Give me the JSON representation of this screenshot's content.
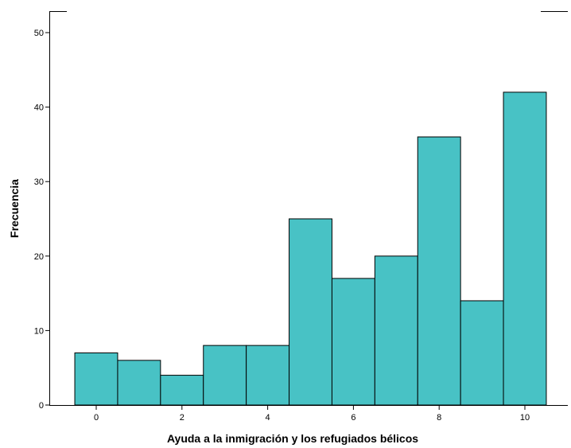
{
  "chart_data": {
    "type": "bar",
    "title": "",
    "xlabel": "Ayuda a la inmigración y los refugiados bélicos",
    "ylabel": "Frecuencia",
    "x": [
      0,
      1,
      2,
      3,
      4,
      5,
      6,
      7,
      8,
      9,
      10
    ],
    "values": [
      7,
      6,
      4,
      8,
      8,
      25,
      17,
      20,
      36,
      14,
      42
    ],
    "xlim": [
      -1,
      11
    ],
    "ylim": [
      0,
      52
    ],
    "x_ticks": [
      0,
      2,
      4,
      6,
      8,
      10
    ],
    "y_ticks": [
      0,
      10,
      20,
      30,
      40,
      50
    ],
    "bar_color": "#48C2C5",
    "bar_edge_color": "#000000",
    "grid": false,
    "legend": "none"
  }
}
